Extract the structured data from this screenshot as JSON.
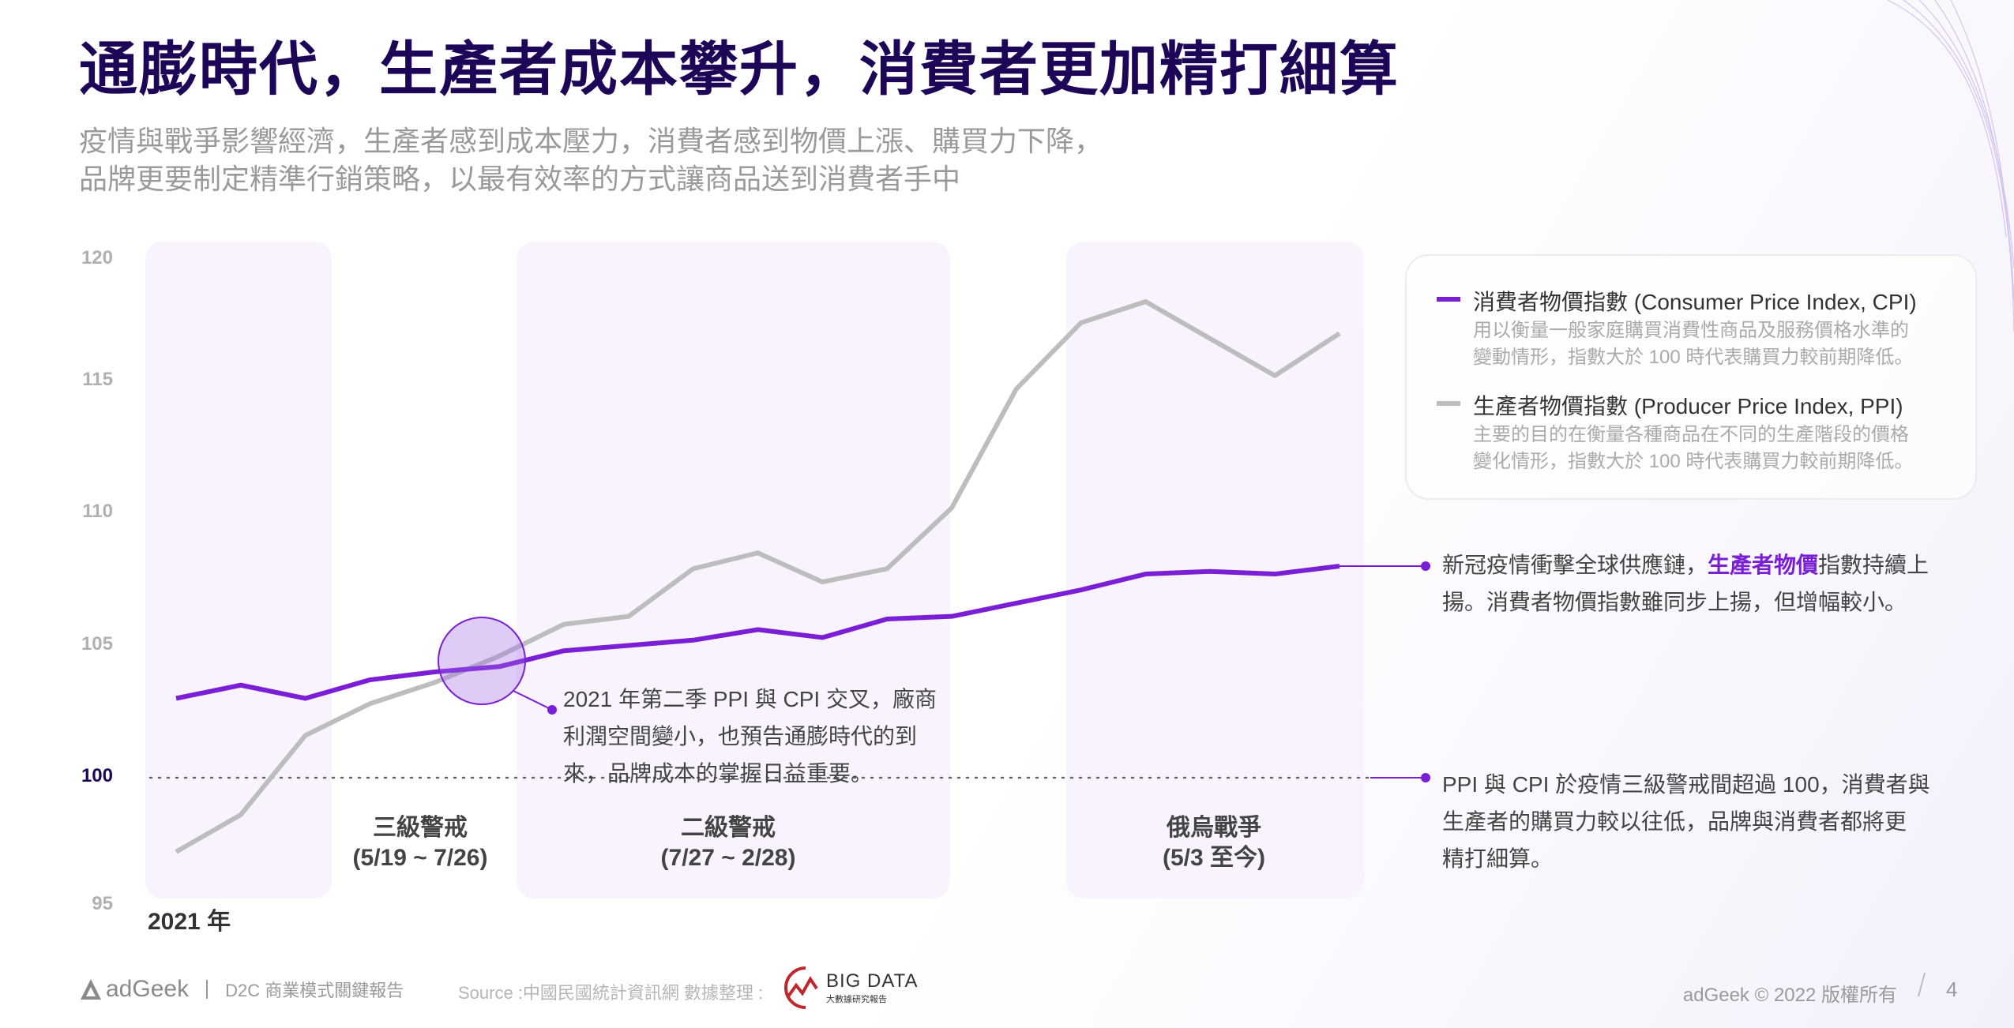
{
  "title": "通膨時代，生產者成本攀升，消費者更加精打細算",
  "subtitle": [
    "疫情與戰爭影響經濟，生產者感到成本壓力，消費者感到物價上漲、購買力下降，",
    "品牌更要制定精準行銷策略，以最有效率的方式讓商品送到消費者手中"
  ],
  "chart_data": {
    "type": "line",
    "title": "",
    "xlabel": "2021 年",
    "ylabel": "",
    "ylim": [
      95,
      120
    ],
    "yticks": [
      "95",
      "100",
      "105",
      "110",
      "115",
      "120"
    ],
    "grid": false,
    "reference_line": 100,
    "series": [
      {
        "name": "消費者物價指數 (Consumer Price Index, CPI)",
        "color": "#7a1fd6",
        "values": [
          103.0,
          103.5,
          103.0,
          103.7,
          104.0,
          104.2,
          104.8,
          105.0,
          105.2,
          105.6,
          105.3,
          106.0,
          106.1,
          106.6,
          107.1,
          107.7,
          107.8,
          107.7,
          108.0
        ]
      },
      {
        "name": "生產者物價指數 (Producer Price Index, PPI)",
        "color": "#bdbdbd",
        "values": [
          97.2,
          98.6,
          101.6,
          102.8,
          103.6,
          104.6,
          105.8,
          106.1,
          107.9,
          108.5,
          107.4,
          107.9,
          110.2,
          114.7,
          117.2,
          118.0,
          116.6,
          115.2,
          116.8
        ]
      }
    ],
    "periods": [
      {
        "label": "三級警戒",
        "range": "(5/19 ~ 7/26)"
      },
      {
        "label": "二級警戒",
        "range": "(7/27 ~ 2/28)"
      },
      {
        "label": "俄烏戰爭",
        "range": "(5/3 至今)"
      }
    ],
    "crossover_note": [
      "2021 年第二季 PPI 與 CPI 交叉，廠商",
      "利潤空間變小，也預告通膨時代的到",
      "來，品牌成本的掌握日益重要。"
    ]
  },
  "legend": [
    {
      "title": "消費者物價指數 (Consumer Price Index, CPI)",
      "color": "#7a1fd6",
      "desc": [
        "用以衡量一般家庭購買消費性商品及服務價格水準的",
        "變動情形，指數大於 100 時代表購買力較前期降低。"
      ]
    },
    {
      "title": "生產者物價指數 (Producer Price Index, PPI)",
      "color": "#bdbdbd",
      "desc": [
        "主要的目的在衡量各種商品在不同的生產階段的價格",
        "變化情形，指數大於 100 時代表購買力較前期降低。"
      ]
    }
  ],
  "annotations": {
    "ppi_rise": {
      "pre": "新冠疫情衝擊全球供應鏈，",
      "highlight": "生產者物價",
      "post": "指數持續上",
      "line2": "揚。消費者物價指數雖同步上揚，但增幅較小。"
    },
    "over_100": [
      "PPI 與 CPI 於疫情三級警戒間超過 100，消費者與",
      "生產者的購買力較以往低，品牌與消費者都將更",
      "精打細算。"
    ]
  },
  "footer": {
    "brand": "adGeek",
    "report": "D2C 商業模式關鍵報告",
    "source": "Source :中國民國統計資訊網  數據整理 :",
    "bigdata_logo": "BIG DATA",
    "bigdata_sub": "大數據研究報告",
    "copyright": "adGeek © 2022 版權所有",
    "page": "4"
  },
  "colors": {
    "accent": "#7a1fd6",
    "title": "#1d0657",
    "ppi": "#bdbdbd"
  }
}
